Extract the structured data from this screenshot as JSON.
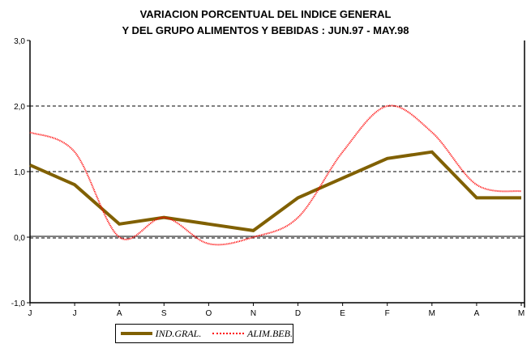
{
  "chart_data": {
    "type": "line",
    "title": [
      "VARIACION PORCENTUAL DEL INDICE GENERAL",
      "Y DEL GRUPO ALIMENTOS Y BEBIDAS : JUN.97 - MAY.98"
    ],
    "categories": [
      "J",
      "J",
      "A",
      "S",
      "O",
      "N",
      "D",
      "E",
      "F",
      "M",
      "A",
      "M"
    ],
    "ylim": [
      -1.0,
      3.0
    ],
    "yticks": [
      "-1,0",
      "0,0",
      "1,0",
      "2,0",
      "3,0"
    ],
    "ytick_values": [
      -1,
      0,
      1,
      2,
      3
    ],
    "grid": "horizontal dashed",
    "legend_position": "bottom",
    "series": [
      {
        "name": "IND.GRAL.",
        "color": "#806000",
        "values": [
          1.1,
          0.8,
          0.2,
          0.3,
          0.2,
          0.1,
          0.6,
          0.9,
          1.2,
          1.3,
          0.6,
          0.6
        ]
      },
      {
        "name": "ALIM.BEB.",
        "color": "#ff0000",
        "values": [
          1.6,
          1.3,
          0.0,
          0.3,
          -0.1,
          0.0,
          0.3,
          1.3,
          2.0,
          1.6,
          0.8,
          0.7
        ]
      }
    ]
  }
}
